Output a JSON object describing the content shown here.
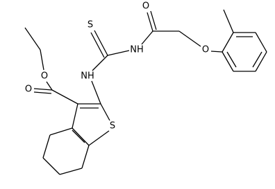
{
  "atoms": [
    {
      "label": "O"
    },
    {
      "label": "O"
    },
    {
      "label": "NH"
    },
    {
      "label": "S"
    },
    {
      "label": "NH"
    },
    {
      "label": "O"
    },
    {
      "label": "O"
    },
    {
      "label": "S"
    }
  ]
}
